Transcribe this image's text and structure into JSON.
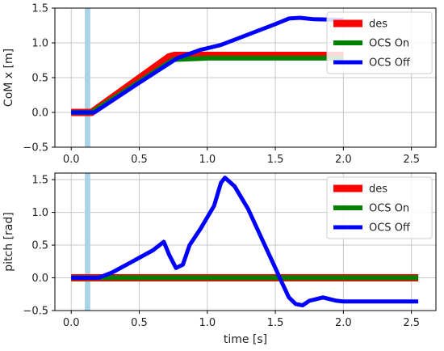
{
  "chart_data": [
    {
      "type": "line",
      "xlabel": "",
      "ylabel": "CoM x [m]",
      "xlim": [
        -0.12,
        2.68
      ],
      "ylim": [
        -0.5,
        1.5
      ],
      "xticks": [
        0.0,
        0.5,
        1.0,
        1.5,
        2.0,
        2.5
      ],
      "xtick_labels": [
        "0.0",
        "0.5",
        "1.0",
        "1.5",
        "2.0",
        "2.5"
      ],
      "yticks": [
        -0.5,
        0.0,
        0.5,
        1.0,
        1.5
      ],
      "ytick_labels": [
        "−0.5",
        "0.0",
        "0.5",
        "1.0",
        "1.5"
      ],
      "grid": true,
      "legend_position": "top-right",
      "shaded_span": {
        "x_start": 0.1,
        "x_end": 0.14,
        "color": "#a9d3e8"
      },
      "series": [
        {
          "name": "des",
          "color": "#ff0000",
          "points": [
            [
              0.0,
              0.0
            ],
            [
              0.15,
              0.0
            ],
            [
              0.72,
              0.8
            ],
            [
              0.76,
              0.82
            ],
            [
              2.0,
              0.82
            ]
          ]
        },
        {
          "name": "OCS On",
          "color": "#008000",
          "points": [
            [
              0.0,
              0.0
            ],
            [
              0.15,
              0.0
            ],
            [
              0.75,
              0.76
            ],
            [
              1.0,
              0.78
            ],
            [
              1.5,
              0.78
            ],
            [
              2.0,
              0.78
            ]
          ]
        },
        {
          "name": "OCS Off",
          "color": "#0000ff",
          "points": [
            [
              0.0,
              0.0
            ],
            [
              0.17,
              0.0
            ],
            [
              0.48,
              0.4
            ],
            [
              0.78,
              0.78
            ],
            [
              0.85,
              0.83
            ],
            [
              0.95,
              0.9
            ],
            [
              1.1,
              0.97
            ],
            [
              1.3,
              1.12
            ],
            [
              1.5,
              1.27
            ],
            [
              1.6,
              1.35
            ],
            [
              1.68,
              1.36
            ],
            [
              1.78,
              1.34
            ],
            [
              2.0,
              1.33
            ]
          ]
        }
      ]
    },
    {
      "type": "line",
      "xlabel": "time [s]",
      "ylabel": "pitch [rad]",
      "xlim": [
        -0.12,
        2.68
      ],
      "ylim": [
        -0.5,
        1.6
      ],
      "xticks": [
        0.0,
        0.5,
        1.0,
        1.5,
        2.0,
        2.5
      ],
      "xtick_labels": [
        "0.0",
        "0.5",
        "1.0",
        "1.5",
        "2.0",
        "2.5"
      ],
      "yticks": [
        -0.5,
        0.0,
        0.5,
        1.0,
        1.5
      ],
      "ytick_labels": [
        "−0.5",
        "0.0",
        "0.5",
        "1.0",
        "1.5"
      ],
      "grid": true,
      "legend_position": "top-right",
      "shaded_span": {
        "x_start": 0.1,
        "x_end": 0.14,
        "color": "#a9d3e8"
      },
      "series": [
        {
          "name": "des",
          "color": "#ff0000",
          "points": [
            [
              0.0,
              0.0
            ],
            [
              2.55,
              0.0
            ]
          ]
        },
        {
          "name": "OCS On",
          "color": "#008000",
          "points": [
            [
              0.0,
              0.0
            ],
            [
              2.55,
              0.0
            ]
          ]
        },
        {
          "name": "OCS Off",
          "color": "#0000ff",
          "points": [
            [
              0.0,
              0.0
            ],
            [
              0.2,
              0.0
            ],
            [
              0.3,
              0.08
            ],
            [
              0.45,
              0.25
            ],
            [
              0.6,
              0.42
            ],
            [
              0.68,
              0.55
            ],
            [
              0.72,
              0.35
            ],
            [
              0.77,
              0.15
            ],
            [
              0.82,
              0.2
            ],
            [
              0.87,
              0.5
            ],
            [
              0.95,
              0.75
            ],
            [
              1.05,
              1.1
            ],
            [
              1.1,
              1.45
            ],
            [
              1.13,
              1.53
            ],
            [
              1.2,
              1.4
            ],
            [
              1.3,
              1.05
            ],
            [
              1.4,
              0.6
            ],
            [
              1.5,
              0.15
            ],
            [
              1.55,
              -0.08
            ],
            [
              1.6,
              -0.3
            ],
            [
              1.65,
              -0.4
            ],
            [
              1.7,
              -0.42
            ],
            [
              1.75,
              -0.35
            ],
            [
              1.85,
              -0.3
            ],
            [
              1.95,
              -0.35
            ],
            [
              2.0,
              -0.36
            ],
            [
              2.55,
              -0.36
            ]
          ]
        }
      ]
    }
  ]
}
